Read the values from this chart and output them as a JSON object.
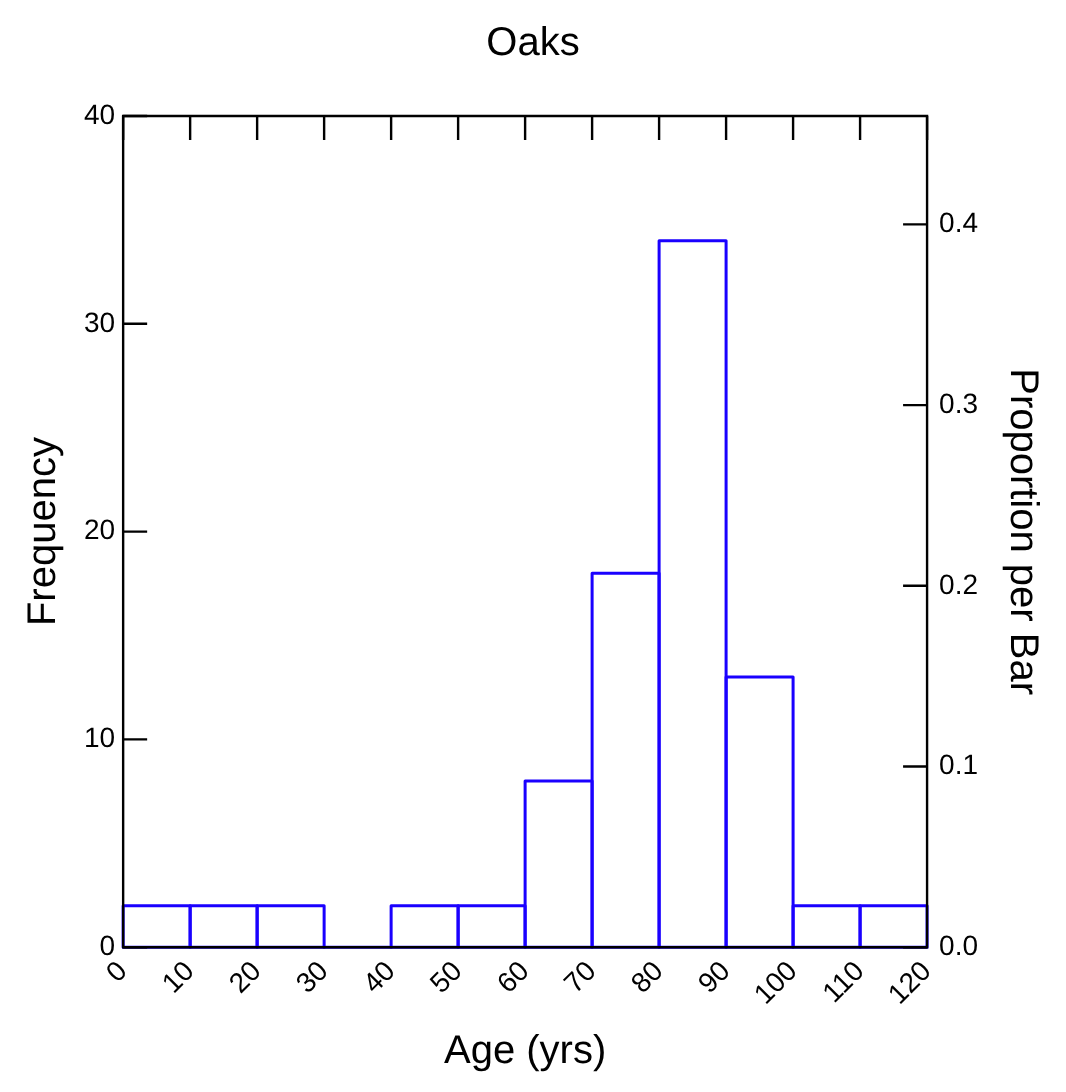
{
  "chart_data": {
    "type": "histogram",
    "title": "Oaks",
    "xlabel": "Age (yrs)",
    "ylabel": "Frequency",
    "y2label": "Proportion per Bar",
    "bins": [
      0,
      10,
      20,
      30,
      40,
      50,
      60,
      70,
      80,
      90,
      100,
      110,
      120
    ],
    "values": [
      2,
      2,
      2,
      0,
      2,
      2,
      8,
      18,
      34,
      13,
      2,
      2
    ],
    "color": "#1a00ff",
    "xlim": [
      0,
      120
    ],
    "xticks": [
      0,
      10,
      20,
      30,
      40,
      50,
      60,
      70,
      80,
      90,
      100,
      110,
      120
    ],
    "ylim": [
      0,
      40
    ],
    "yticks": [
      0,
      10,
      20,
      30,
      40
    ],
    "y2lim": [
      0,
      0.46
    ],
    "y2ticks": [
      {
        "value": 0,
        "label": "0.0"
      },
      0.1,
      0.2,
      0.3,
      0.4
    ]
  }
}
